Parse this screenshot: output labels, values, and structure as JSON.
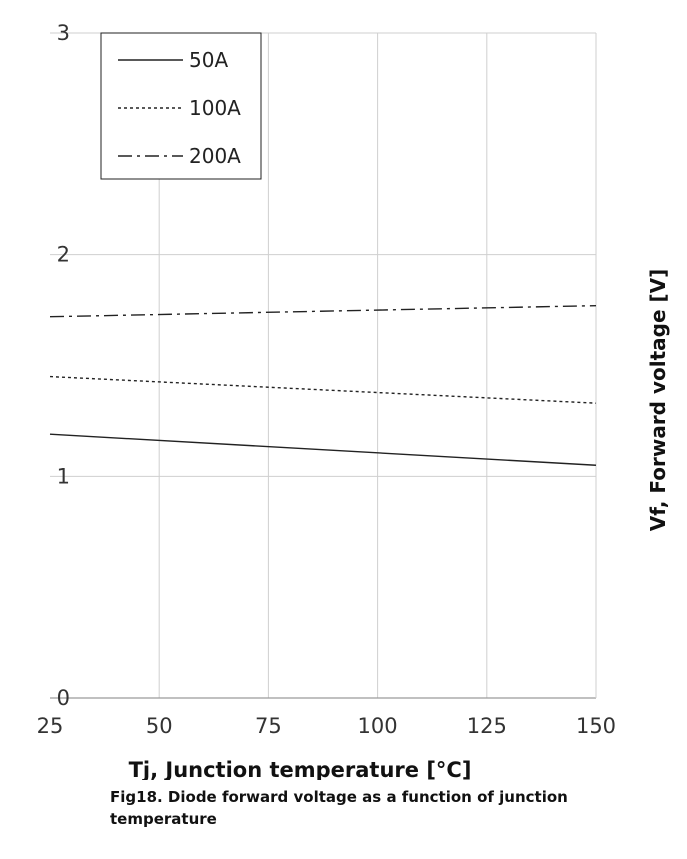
{
  "chart_data": {
    "type": "line",
    "xlabel": "Tj, Junction temperature [°C]",
    "ylabel": "Vf, Forward voltage [V]",
    "caption": "Fig18. Diode forward voltage as a function of junction temperature",
    "x_ticks": [
      "25",
      "50",
      "75",
      "100",
      "125",
      "150"
    ],
    "y_ticks": [
      "0",
      "1",
      "2",
      "3"
    ],
    "xlim": [
      25,
      150
    ],
    "ylim": [
      0,
      3
    ],
    "grid": true,
    "legend_position": "top-left",
    "series": [
      {
        "name": "50A",
        "style": "solid",
        "x": [
          25,
          150
        ],
        "y": [
          1.19,
          1.05
        ]
      },
      {
        "name": "100A",
        "style": "dotted",
        "x": [
          25,
          150
        ],
        "y": [
          1.45,
          1.33
        ]
      },
      {
        "name": "200A",
        "style": "dash-dot",
        "x": [
          25,
          150
        ],
        "y": [
          1.72,
          1.77
        ]
      }
    ]
  }
}
